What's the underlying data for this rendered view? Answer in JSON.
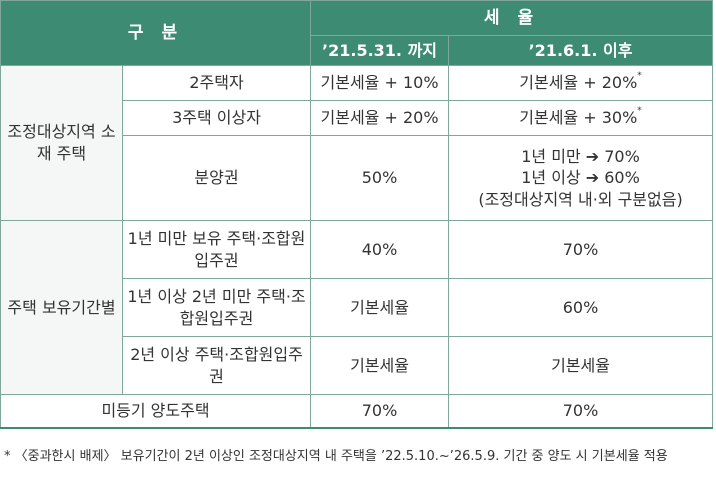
{
  "header": {
    "category": "구 분",
    "tax_rate": "세 율",
    "period_before": "’21.5.31. 까지",
    "period_after": "’21.6.1. 이후"
  },
  "groups": {
    "adjusted_area": "조정대상지역 소재 주택",
    "holding_period": "주택 보유기간별"
  },
  "rows": {
    "two_homes": {
      "label": "2주택자",
      "before": "기본세율 + 10%",
      "after": "기본세율 + 20%",
      "mark": "*"
    },
    "three_homes": {
      "label": "3주택 이상자",
      "before": "기본세율 + 20%",
      "after": "기본세율 + 30%",
      "mark": "*"
    },
    "presale": {
      "label": "분양권",
      "before": "50%",
      "after_line1": "1년 미만 ➔ 70%",
      "after_line2": "1년 이상 ➔ 60%",
      "after_line3": "(조정대상지역 내·외 구분없음)"
    },
    "under_1y": {
      "label": "1년 미만 보유 주택·조합원입주권",
      "before": "40%",
      "after": "70%"
    },
    "one_to_2y": {
      "label": "1년 이상 2년 미만 주택·조합원입주권",
      "before": "기본세율",
      "after": "60%"
    },
    "over_2y": {
      "label": "2년 이상 주택·조합원입주권",
      "before": "기본세율",
      "after": "기본세율"
    },
    "unregistered": {
      "label": "미등기 양도주택",
      "before": "70%",
      "after": "70%"
    }
  },
  "footnote": "* 〈중과한시 배제〉 보유기간이 2년 이상인 조정대상지역 내 주택을 ’22.5.10.~’26.5.9. 기간 중 양도 시 기본세율 적용"
}
